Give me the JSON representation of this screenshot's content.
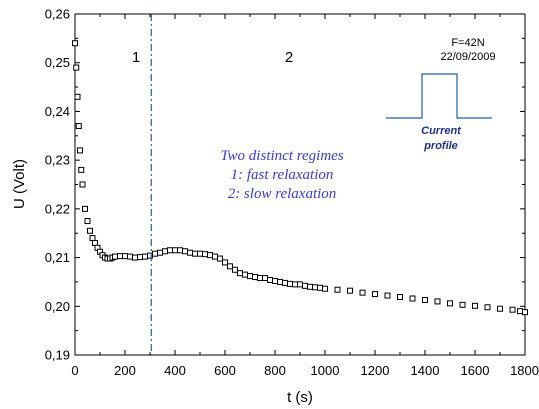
{
  "chart_data": {
    "type": "scatter",
    "title": "",
    "xlabel": "t (s)",
    "ylabel": "U (Volt)",
    "xlim": [
      0,
      1800
    ],
    "ylim": [
      0.19,
      0.26
    ],
    "x_ticks": [
      "0",
      "200",
      "400",
      "600",
      "800",
      "1000",
      "1200",
      "1400",
      "1600",
      "1800"
    ],
    "y_ticks": [
      "0,19",
      "0,20",
      "0,21",
      "0,22",
      "0,23",
      "0,24",
      "0,25",
      "0,26"
    ],
    "grid": false,
    "series": [
      {
        "marker": "open-square",
        "x": [
          0,
          5,
          10,
          15,
          20,
          25,
          30,
          40,
          50,
          60,
          70,
          80,
          90,
          100,
          110,
          120,
          130,
          140,
          150,
          160,
          180,
          200,
          220,
          240,
          260,
          280,
          300,
          320,
          340,
          360,
          380,
          400,
          420,
          440,
          460,
          480,
          500,
          520,
          540,
          560,
          580,
          600,
          620,
          640,
          660,
          680,
          700,
          720,
          740,
          760,
          780,
          800,
          820,
          840,
          860,
          880,
          900,
          920,
          940,
          960,
          980,
          1000,
          1050,
          1100,
          1150,
          1200,
          1250,
          1300,
          1350,
          1400,
          1450,
          1500,
          1550,
          1600,
          1650,
          1700,
          1750,
          1780,
          1800
        ],
        "y": [
          0.254,
          0.249,
          0.243,
          0.237,
          0.232,
          0.228,
          0.225,
          0.22,
          0.2175,
          0.2155,
          0.214,
          0.213,
          0.212,
          0.2112,
          0.2105,
          0.21,
          0.2098,
          0.2098,
          0.21,
          0.2102,
          0.2103,
          0.2103,
          0.2102,
          0.21,
          0.2101,
          0.2102,
          0.2104,
          0.2108,
          0.211,
          0.2113,
          0.2115,
          0.2115,
          0.2115,
          0.2113,
          0.211,
          0.2108,
          0.2108,
          0.2107,
          0.2105,
          0.2102,
          0.2098,
          0.209,
          0.2082,
          0.2075,
          0.2068,
          0.2065,
          0.2062,
          0.206,
          0.2058,
          0.2058,
          0.2054,
          0.2052,
          0.205,
          0.2048,
          0.2046,
          0.2045,
          0.2045,
          0.2042,
          0.204,
          0.2039,
          0.2038,
          0.2036,
          0.2034,
          0.2032,
          0.2028,
          0.2025,
          0.2022,
          0.2019,
          0.2016,
          0.2013,
          0.201,
          0.2006,
          0.2003,
          0.2001,
          0.1998,
          0.1995,
          0.1993,
          0.199,
          0.1988
        ]
      }
    ],
    "vline": {
      "x": 305,
      "style": "dash-dot",
      "color": "#1f5fa8"
    },
    "region_labels": [
      "1",
      "2"
    ],
    "info_text": [
      "F=42N",
      "22/09/2009"
    ],
    "regime_text": [
      "Two distinct regimes",
      "1: fast relaxation",
      "2: slow relaxation"
    ],
    "profile_caption": [
      "Current",
      "profile"
    ],
    "colors": {
      "marker": "#000000",
      "vline": "#1f5fa8",
      "regime_text": "#3a3ad6",
      "profile_line": "#1f5fa8",
      "profile_caption": "#1f2f86"
    }
  }
}
